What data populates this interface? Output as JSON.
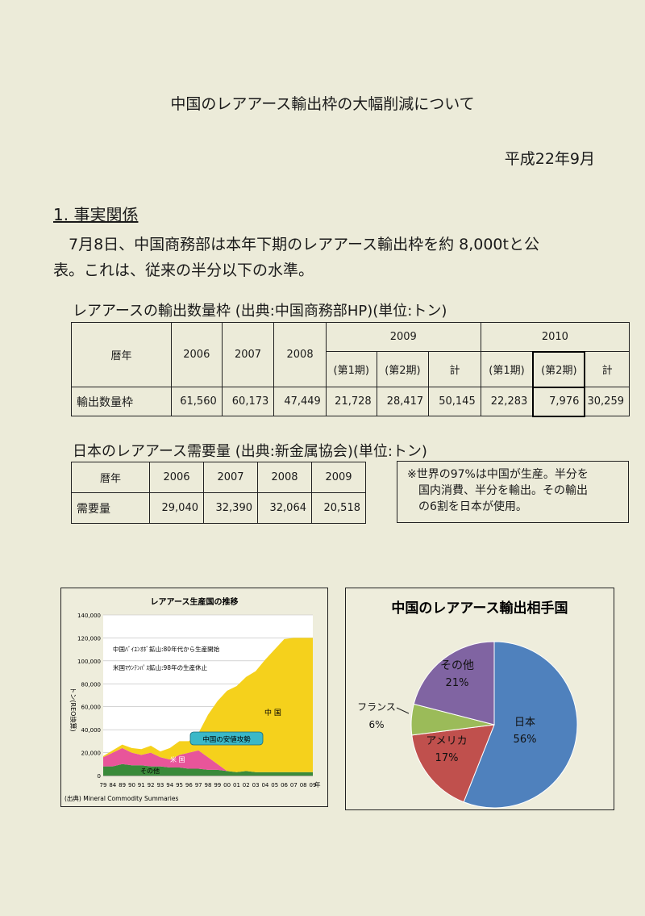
{
  "title": "中国のレアアース輸出枠の大幅削減について",
  "date": "平成22年9月",
  "section1": {
    "heading": "1. 事実関係",
    "line1": "7月8日、中国商務部は本年下期のレアアース輸出枠を約 8,000tと公",
    "line2": "表。これは、従来の半分以下の水準。"
  },
  "export_table": {
    "caption": "レアアースの輸出数量枠 (出典:中国商務部HP)(単位:トン)",
    "row_head": "暦年",
    "years": [
      "2006",
      "2007",
      "2008"
    ],
    "y2009": "2009",
    "y2010": "2010",
    "p1": "(第1期)",
    "p2": "(第2期)",
    "total": "計",
    "row_label": "輸出数量枠",
    "values": [
      "61,560",
      "60,173",
      "47,449",
      "21,728",
      "28,417",
      "50,145",
      "22,283",
      "7,976",
      "30,259"
    ]
  },
  "demand_table": {
    "caption": "日本のレアアース需要量 (出典:新金属協会)(単位:トン)",
    "row_head": "暦年",
    "years": [
      "2006",
      "2007",
      "2008",
      "2009"
    ],
    "row_label": "需要量",
    "values": [
      "29,040",
      "32,390",
      "32,064",
      "20,518"
    ]
  },
  "note": {
    "l1": "※世界の97%は中国が生産。半分を",
    "l2": "国内消費、半分を輸出。その輸出",
    "l3": "の6割を日本が使用。"
  },
  "area_chart": {
    "title": "レアアース生産国の推移",
    "ylabel": "トン(REO換算)",
    "yticks": [
      "0",
      "20,000",
      "40,000",
      "60,000",
      "80,000",
      "100,000",
      "120,000",
      "140,000"
    ],
    "xticks": [
      "79",
      "84",
      "89",
      "90",
      "91",
      "92",
      "93",
      "94",
      "95",
      "96",
      "97",
      "98",
      "99",
      "00",
      "01",
      "02",
      "03",
      "04",
      "05",
      "06",
      "07",
      "08",
      "09"
    ],
    "xunit": "年",
    "note1": "中国ﾊﾞｲﾕﾝｵﾎﾞ鉱山:80年代から生産開始",
    "note2": "米国ﾏｳﾝﾃﾝﾊﾟｽ鉱山:98年の生産休止",
    "label_china": "中 国",
    "label_usa": "米 国",
    "label_other": "その他",
    "callout": "中国の安値攻勢",
    "source": "(出典) Mineral Commodity Summaries",
    "colors": {
      "china": "#f5d11c",
      "usa": "#e8559a",
      "other": "#3a8a3a"
    }
  },
  "chart_data": [
    {
      "type": "area",
      "title": "レアアース生産国の推移",
      "ylabel": "トン(REO換算)",
      "xlabel": "年",
      "ylim": [
        0,
        140000
      ],
      "x": [
        "79",
        "84",
        "89",
        "90",
        "91",
        "92",
        "93",
        "94",
        "95",
        "96",
        "97",
        "98",
        "99",
        "00",
        "01",
        "02",
        "03",
        "04",
        "05",
        "06",
        "07",
        "08",
        "09"
      ],
      "series": [
        {
          "name": "その他",
          "values": [
            8000,
            8000,
            10000,
            9000,
            9000,
            8000,
            8000,
            7000,
            7000,
            6000,
            6000,
            5000,
            5000,
            4000,
            3000,
            4000,
            3000,
            3000,
            3000,
            3000,
            3000,
            3000,
            3000
          ]
        },
        {
          "name": "米国",
          "values": [
            8000,
            12000,
            14000,
            11000,
            9000,
            12000,
            8000,
            7000,
            11000,
            14000,
            16000,
            11000,
            5000,
            0,
            0,
            0,
            0,
            0,
            0,
            0,
            0,
            0,
            0
          ]
        },
        {
          "name": "中国",
          "values": [
            1000,
            2000,
            3000,
            4000,
            5000,
            6000,
            5000,
            10000,
            12000,
            10000,
            15000,
            37000,
            55000,
            70000,
            75000,
            82000,
            88000,
            98000,
            107000,
            116000,
            117000,
            117000,
            117000
          ]
        }
      ],
      "annotations": [
        "中国ﾊﾞｲﾕﾝｵﾎﾞ鉱山:80年代から生産開始",
        "米国ﾏｳﾝﾃﾝﾊﾟｽ鉱山:98年の生産休止",
        "中国の安値攻勢"
      ],
      "grid": true
    },
    {
      "type": "pie",
      "title": "中国のレアアース輸出相手国",
      "labels": [
        "日本",
        "アメリカ",
        "フランス",
        "その他"
      ],
      "values": [
        56,
        17,
        6,
        21
      ],
      "colors": [
        "#4f81bd",
        "#c0504d",
        "#9bbb59",
        "#8064a2"
      ]
    }
  ],
  "pie_labels": {
    "jp_name": "日本",
    "jp_pct": "56%",
    "us_name": "アメリカ",
    "us_pct": "17%",
    "fr_name": "フランス",
    "fr_pct": "6%",
    "ot_name": "その他",
    "ot_pct": "21%"
  }
}
